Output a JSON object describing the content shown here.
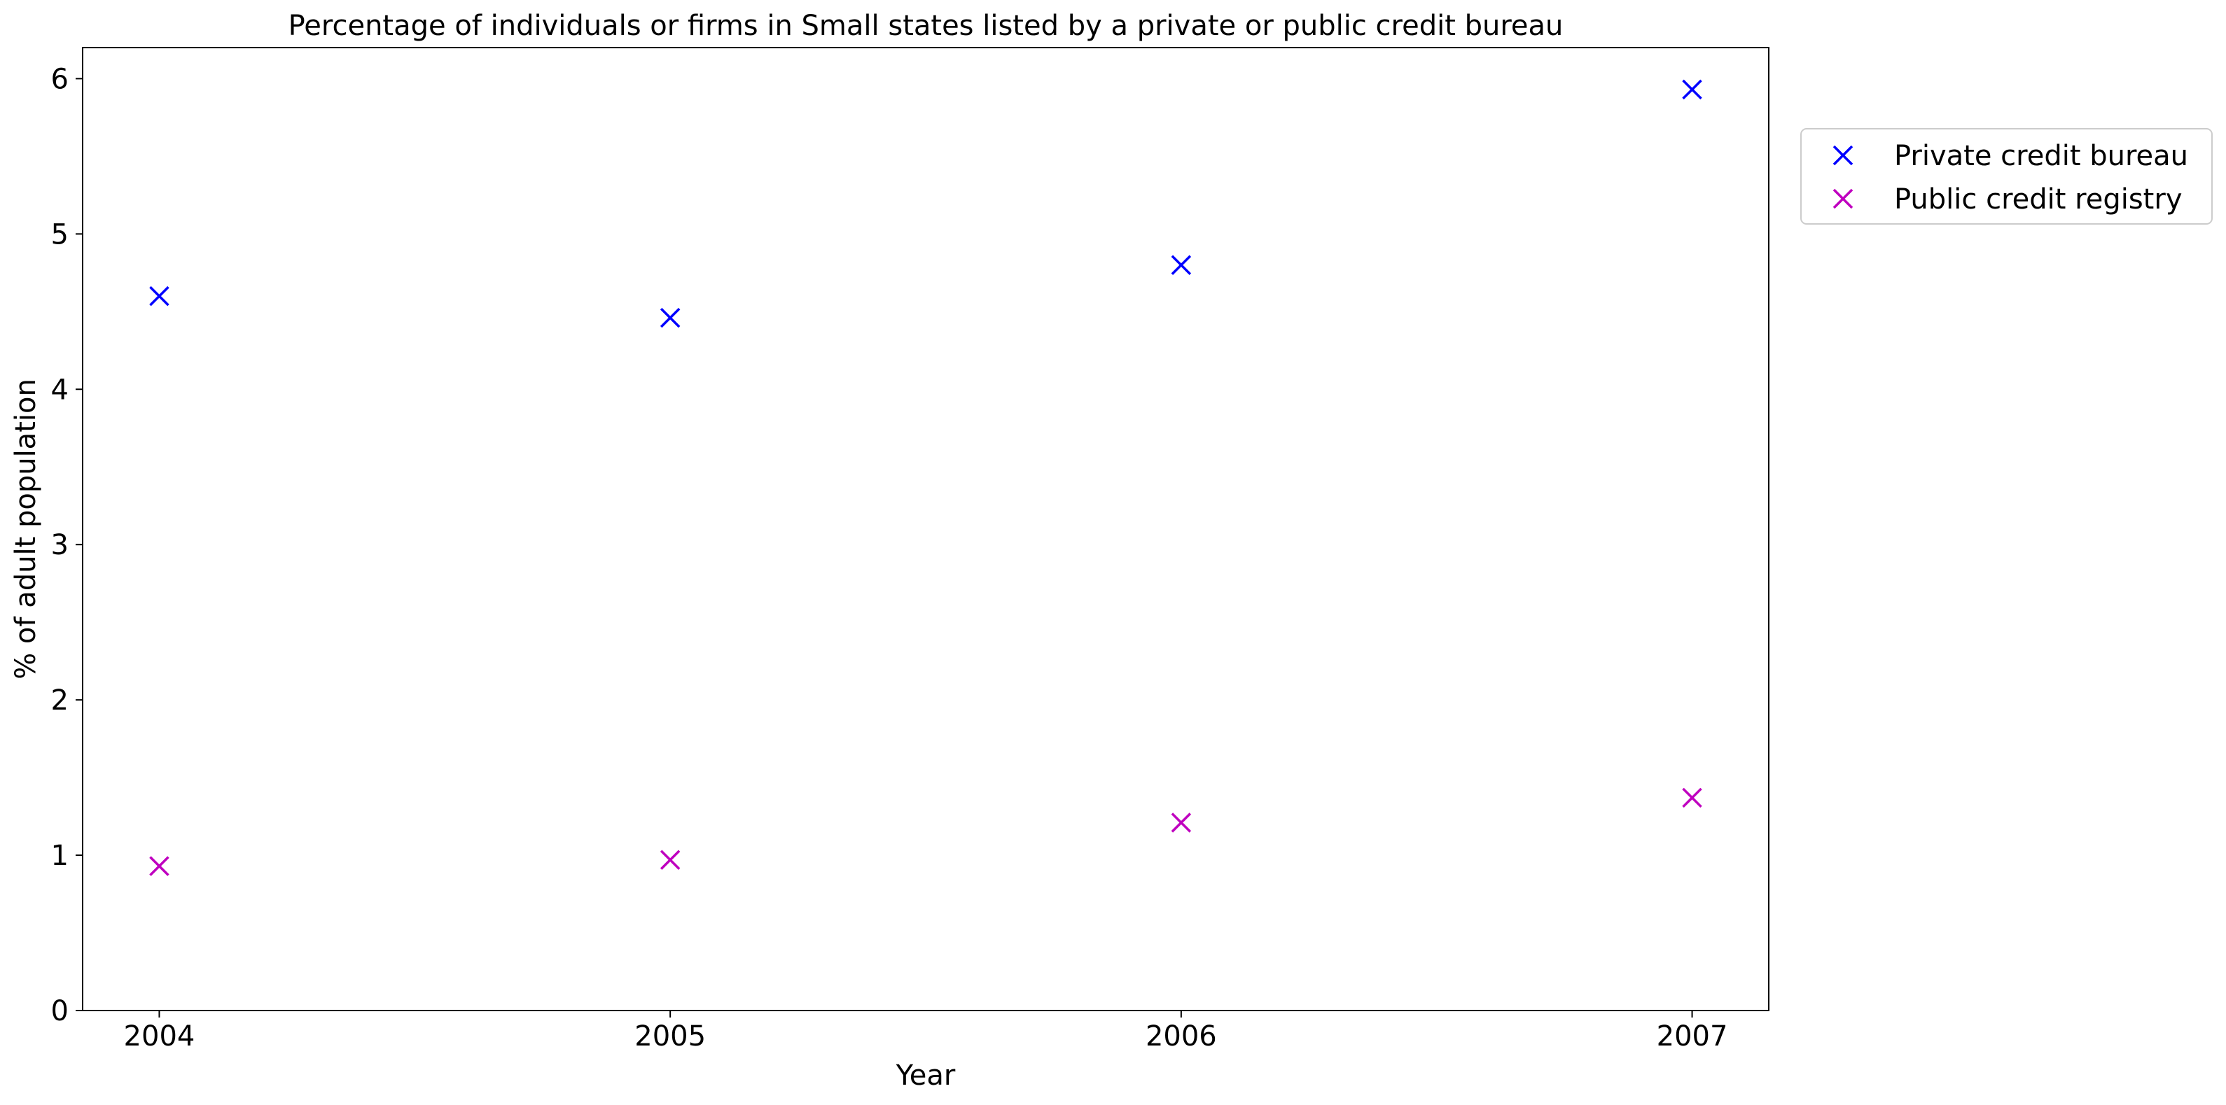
{
  "chart_data": {
    "type": "scatter",
    "title": "Percentage of individuals or firms in Small states listed by a private or public credit bureau",
    "xlabel": "Year",
    "ylabel": "% of adult population",
    "x": [
      2004,
      2005,
      2006,
      2007
    ],
    "x_tick_labels": [
      "2004",
      "2005",
      "2006",
      "2007"
    ],
    "xlim": [
      2003.85,
      2007.15
    ],
    "ylim": [
      0,
      6.2
    ],
    "y_ticks": [
      0,
      1,
      2,
      3,
      4,
      5,
      6
    ],
    "y_tick_labels": [
      "0",
      "1",
      "2",
      "3",
      "4",
      "5",
      "6"
    ],
    "grid": false,
    "legend_position": "outside-top-right",
    "marker": "x",
    "series": [
      {
        "name": "Private credit bureau",
        "color": "#0000ff",
        "values": [
          4.6,
          4.46,
          4.8,
          5.93
        ]
      },
      {
        "name": "Public credit registry",
        "color": "#bf00bf",
        "values": [
          0.93,
          0.97,
          1.21,
          1.37
        ]
      }
    ]
  }
}
